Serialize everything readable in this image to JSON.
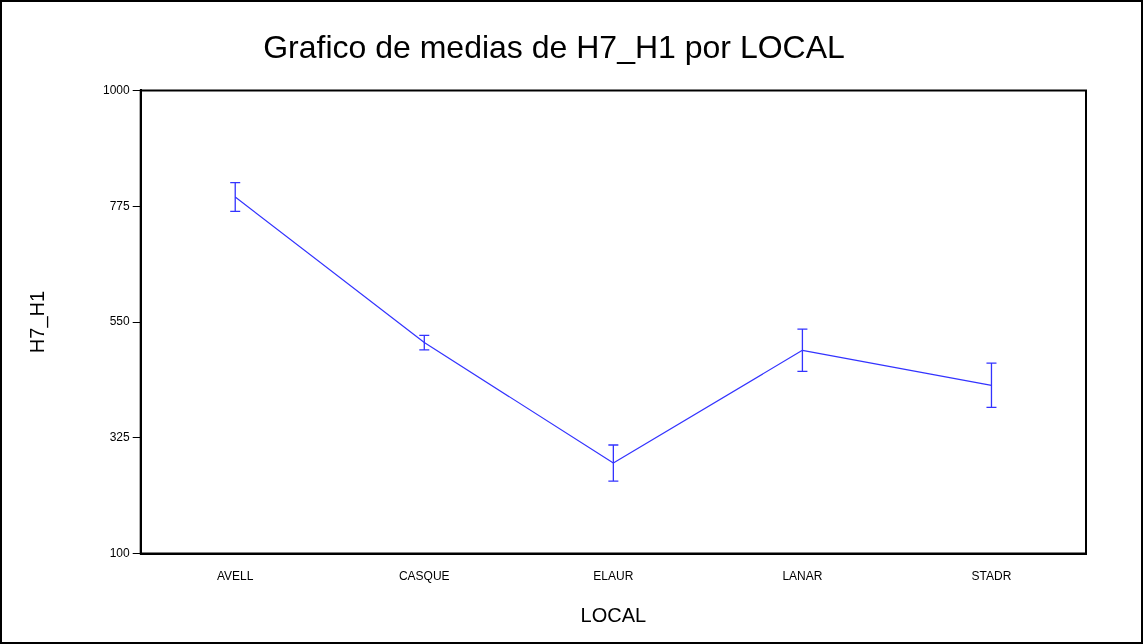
{
  "chart_data": {
    "type": "line",
    "title": "Grafico de medias de H7_H1 por LOCAL",
    "xlabel": "LOCAL",
    "ylabel": "H7_H1",
    "categories": [
      "AVELL",
      "CASQUE",
      "ELAUR",
      "LANAR",
      "STADR"
    ],
    "values": [
      793,
      510,
      276,
      495,
      427
    ],
    "errors": [
      28,
      14,
      35,
      41,
      43
    ],
    "color": "#3333ff",
    "marker": "none",
    "line_style": "solid",
    "grid": false,
    "legend": false,
    "ylim": [
      100,
      1000
    ],
    "yticks": [
      100,
      325,
      550,
      775,
      1000
    ]
  }
}
